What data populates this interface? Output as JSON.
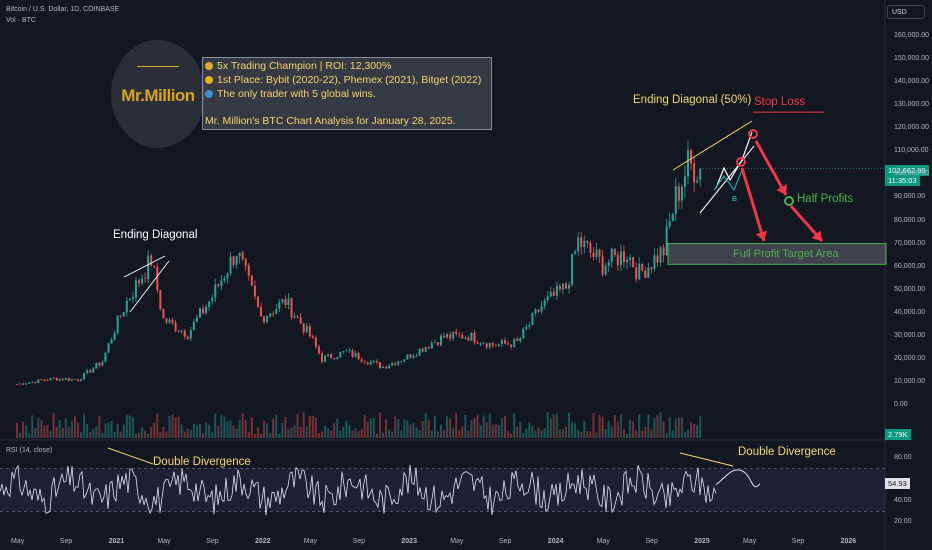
{
  "header": {
    "symbol_line": "Bitcoin / U.S. Dollar, 1D, COINBASE",
    "volume_line": "Vol · BTC",
    "currency_button": "USD"
  },
  "logo": {
    "text": "Mr.Million"
  },
  "info_box": {
    "line1": "5x Trading Champion | ROI: 12,300%",
    "line2": "1st Place: Bybit (2020-22), Phemex (2021), Bitget (2022)",
    "line3": "The only trader with 5 global wins.",
    "line4": "Mr. Million's BTC Chart Analysis for January 28, 2025."
  },
  "icons": {
    "trophy": "trophy-icon",
    "medal": "medal-icon",
    "globe": "globe-icon"
  },
  "annotations": {
    "ending_diagonal_left": "Ending Diagonal",
    "ending_diagonal_right": "Ending Diagonal (50%)",
    "stop_loss": "Stop Loss",
    "half_profits": "Half Profits",
    "full_profit": "Full Profit Target Area",
    "wave_b": "B",
    "double_divergence_left": "Double Divergence",
    "double_divergence_right": "Double Divergence"
  },
  "price_tags": {
    "last_price": "102,662.90",
    "countdown": "11:35:03",
    "volume": "2.79K",
    "rsi_value": "54.93"
  },
  "rsi_header": "RSI (14, close)",
  "colors": {
    "background": "#131722",
    "bull": "#26a69a",
    "bear": "#ef5350",
    "annotation_yellow": "#f5d66b",
    "stop_red": "#f23645",
    "target_green": "#4caf50",
    "rsi_line": "#e0e3eb"
  },
  "chart_data": [
    {
      "type": "line",
      "title": "Bitcoin / U.S. Dollar, 1D, COINBASE",
      "xlabel": "",
      "ylabel": "",
      "ylim": [
        0,
        160000
      ],
      "y_ticks": [
        "160,000.00",
        "150,000.00",
        "140,000.00",
        "130,000.00",
        "120,000.00",
        "110,000.00",
        "100,000.00",
        "90,000.00",
        "80,000.00",
        "70,000.00",
        "60,000.00",
        "50,000.00",
        "40,000.00",
        "30,000.00",
        "20,000.00",
        "10,000.00",
        "0.00"
      ],
      "x_ticks": [
        "May",
        "Sep",
        "2021",
        "May",
        "Sep",
        "2022",
        "May",
        "Sep",
        "2023",
        "May",
        "Sep",
        "2024",
        "May",
        "Sep",
        "2025",
        "May",
        "Sep",
        "2026"
      ],
      "x": [
        "2020-05",
        "2020-08",
        "2020-10",
        "2020-12",
        "2021-01",
        "2021-02",
        "2021-04",
        "2021-05",
        "2021-07",
        "2021-09",
        "2021-11",
        "2022-01",
        "2022-03",
        "2022-05",
        "2022-06",
        "2022-08",
        "2022-11",
        "2023-01",
        "2023-03",
        "2023-04",
        "2023-06",
        "2023-08",
        "2023-10",
        "2023-12",
        "2024-02",
        "2024-03",
        "2024-05",
        "2024-07",
        "2024-08",
        "2024-10",
        "2024-11",
        "2024-12",
        "2025-01"
      ],
      "values": [
        9000,
        11500,
        11000,
        19000,
        33000,
        45000,
        63000,
        37000,
        31000,
        47000,
        67000,
        38000,
        45000,
        30000,
        20000,
        23000,
        16500,
        21000,
        27000,
        29500,
        30000,
        26000,
        27000,
        43000,
        51000,
        71000,
        61000,
        66000,
        57000,
        67000,
        90000,
        104000,
        102662
      ],
      "levels": {
        "stop_loss": 127000,
        "full_profit_target_low": 61000,
        "full_profit_target_high": 70000,
        "half_profits": 89000,
        "last_price": 102662.9
      }
    },
    {
      "type": "line",
      "title": "RSI (14, close)",
      "ylim": [
        20,
        90
      ],
      "y_ticks": [
        "80.00",
        "54.93",
        "40.00",
        "20.00"
      ],
      "bands": [
        30,
        70
      ],
      "last_value": 54.93
    }
  ]
}
